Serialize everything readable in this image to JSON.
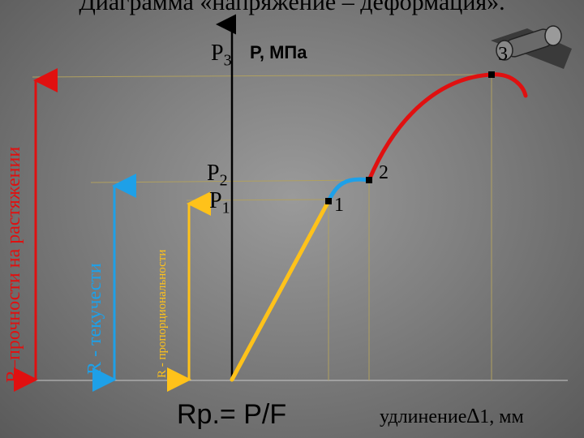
{
  "title": "Диаграмма «напряжение – деформация».",
  "axes": {
    "y_label": "P, МПа",
    "x_label_prefix": "удлинение",
    "x_label_delta": "∆",
    "x_label_suffix": "1, мм"
  },
  "y_levels": {
    "p1": "P",
    "p1_sub": "1",
    "p2": "P",
    "p2_sub": "2",
    "p3": "P",
    "p3_sub": "3"
  },
  "points": {
    "pt1": "1",
    "pt2": "2",
    "pt3": "3"
  },
  "limits": {
    "proportionality": "R - пропорциональности",
    "yield": "R - текучести",
    "strength": "R–прочности на растяжении"
  },
  "formula": "Rp.= P/F",
  "colors": {
    "elastic": "#ffc21a",
    "yield": "#1ea0e8",
    "hardening": "#e01010",
    "strength_arrow": "#e01010",
    "yield_arrow": "#1ea0e8",
    "prop_arrow": "#ffc21a"
  }
}
